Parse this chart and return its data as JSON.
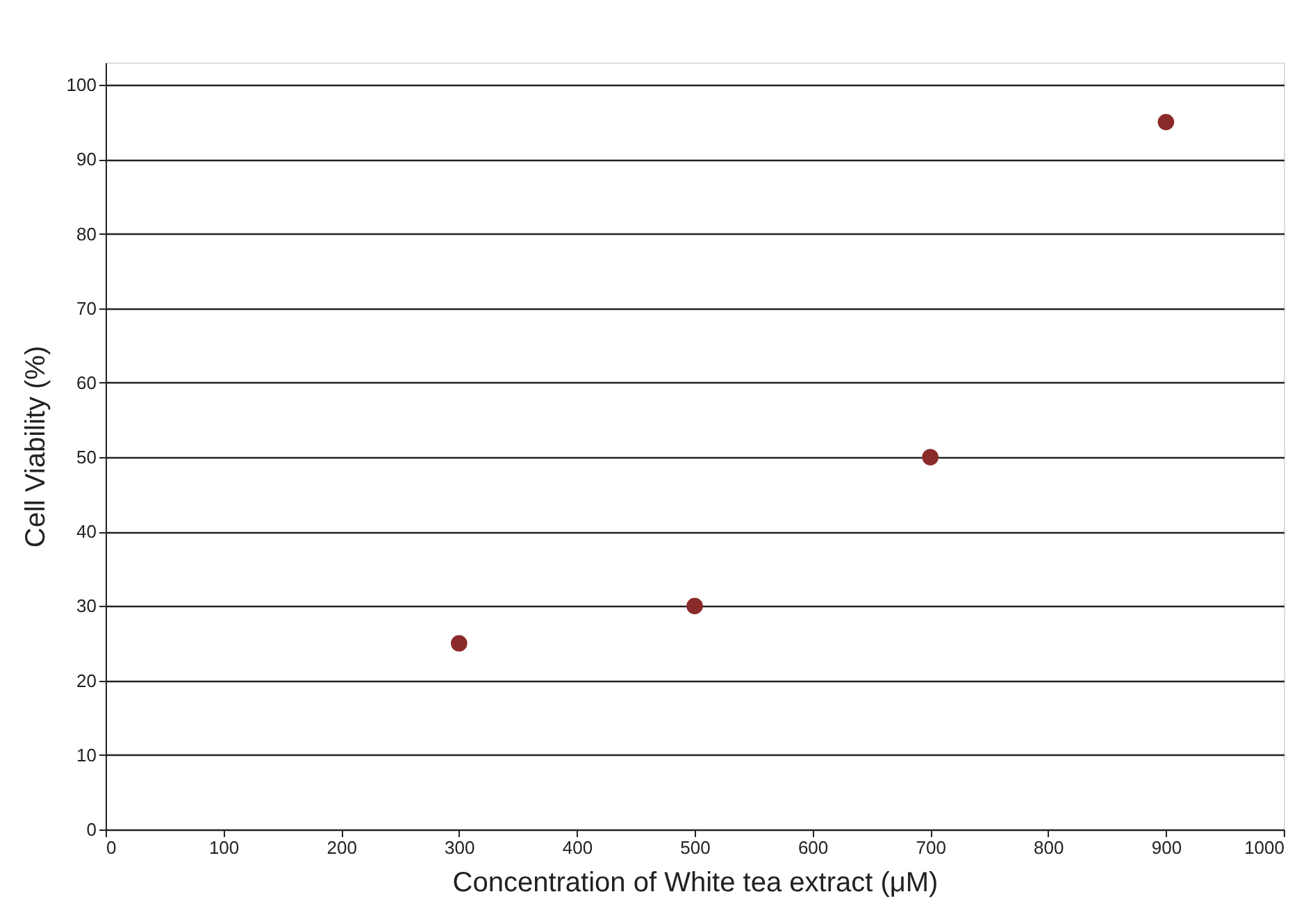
{
  "chart_data": {
    "type": "scatter",
    "xlabel": "Concentration of White tea extract (μM)",
    "ylabel": "Cell Viability (%)",
    "x": [
      300,
      500,
      700,
      900
    ],
    "series": [
      {
        "color": "#8b2a2a",
        "values": [
          25,
          30,
          50,
          95
        ]
      }
    ],
    "xlim": [
      0,
      1000
    ],
    "xticks": [
      0,
      100,
      200,
      300,
      400,
      500,
      600,
      700,
      800,
      900,
      1000
    ],
    "ylim": [
      0,
      103
    ],
    "yticks": [
      0,
      10,
      20,
      30,
      40,
      50,
      60,
      70,
      80,
      90,
      100
    ],
    "grid": "y",
    "legend": false,
    "marker": "circle"
  }
}
